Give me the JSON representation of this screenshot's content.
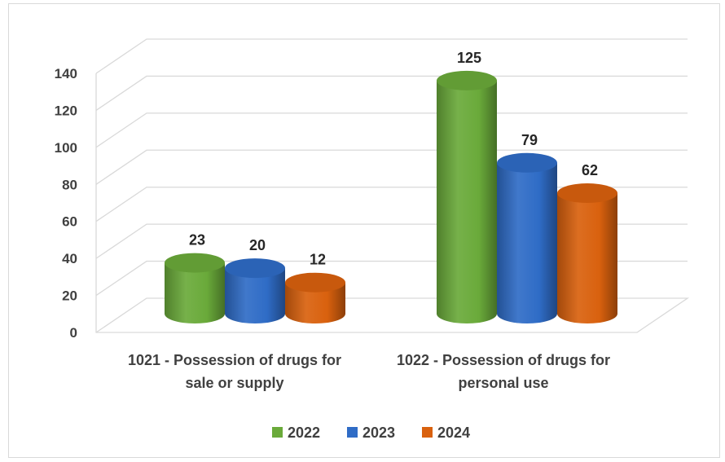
{
  "chart_data": {
    "type": "bar",
    "style": "3d-cylinder",
    "title": "",
    "xlabel": "",
    "ylabel": "",
    "ylim": [
      0,
      140
    ],
    "yticks": [
      0,
      20,
      40,
      60,
      80,
      100,
      120,
      140
    ],
    "grid": true,
    "legend_position": "bottom",
    "categories": [
      [
        "1021 - Possession of drugs for",
        "sale or supply"
      ],
      [
        "1022 - Possession of drugs for",
        "personal use"
      ]
    ],
    "series": [
      {
        "name": "2022",
        "color": "#6aaa3a",
        "values": [
          23,
          125
        ]
      },
      {
        "name": "2023",
        "color": "#2f6cc6",
        "values": [
          20,
          79
        ]
      },
      {
        "name": "2024",
        "color": "#d9610e",
        "values": [
          12,
          62
        ]
      }
    ]
  }
}
